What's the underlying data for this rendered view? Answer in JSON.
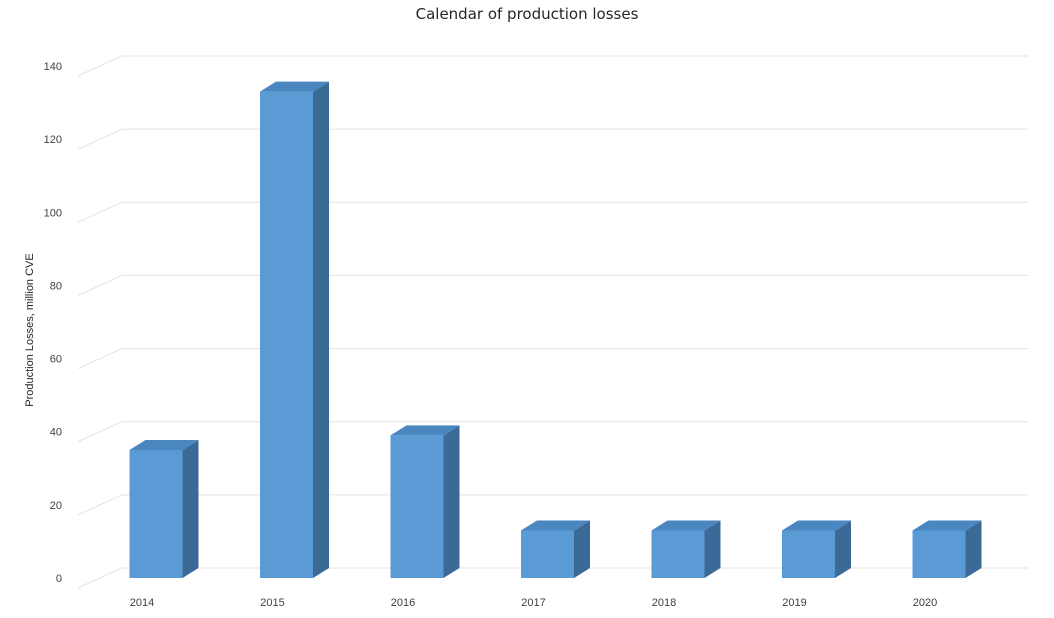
{
  "chart_data": {
    "type": "bar",
    "title": "Calendar of production losses",
    "xlabel": "",
    "ylabel": "Production Losses, million CVE",
    "categories": [
      "2014",
      "2015",
      "2016",
      "2017",
      "2018",
      "2019",
      "2020"
    ],
    "values": [
      35,
      133,
      39,
      13,
      13,
      13,
      13
    ],
    "ylim": [
      0,
      140
    ],
    "yticks": [
      0,
      20,
      40,
      60,
      80,
      100,
      120,
      140
    ],
    "grid": true,
    "legend": "none",
    "colors": {
      "bar_front": "#5b9bd5",
      "bar_side": "#3c6a96",
      "bar_top": "#4a86c0"
    }
  }
}
